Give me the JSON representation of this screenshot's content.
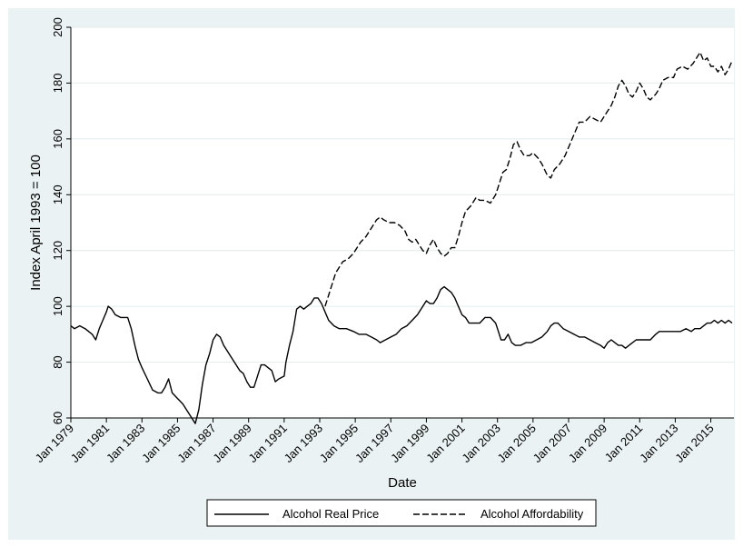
{
  "chart_data": {
    "type": "line",
    "title": "",
    "xlabel": "Date",
    "ylabel": "Index April 1993 = 100",
    "ylim": [
      60,
      200
    ],
    "xlim": [
      1979,
      2016.3
    ],
    "yticks": [
      60,
      80,
      100,
      120,
      140,
      160,
      180,
      200
    ],
    "xticks": [
      {
        "label": "Jan 1979",
        "value": 1979
      },
      {
        "label": "Jan 1981",
        "value": 1981
      },
      {
        "label": "Jan 1983",
        "value": 1983
      },
      {
        "label": "Jan 1985",
        "value": 1985
      },
      {
        "label": "Jan 1987",
        "value": 1987
      },
      {
        "label": "Jan 1989",
        "value": 1989
      },
      {
        "label": "Jan 1991",
        "value": 1991
      },
      {
        "label": "Jan 1993",
        "value": 1993
      },
      {
        "label": "Jan 1995",
        "value": 1995
      },
      {
        "label": "Jan 1997",
        "value": 1997
      },
      {
        "label": "Jan 1999",
        "value": 1999
      },
      {
        "label": "Jan 2001",
        "value": 2001
      },
      {
        "label": "Jan 2003",
        "value": 2003
      },
      {
        "label": "Jan 2005",
        "value": 2005
      },
      {
        "label": "Jan 2007",
        "value": 2007
      },
      {
        "label": "Jan 2009",
        "value": 2009
      },
      {
        "label": "Jan 2011",
        "value": 2011
      },
      {
        "label": "Jan 2013",
        "value": 2013
      },
      {
        "label": "Jan 2015",
        "value": 2015
      }
    ],
    "grid": true,
    "legend_position": "bottom",
    "series": [
      {
        "name": "Alcohol Real Price",
        "style": "solid",
        "color": "#000000",
        "points": [
          [
            1979.0,
            93
          ],
          [
            1979.2,
            92
          ],
          [
            1979.5,
            93
          ],
          [
            1979.8,
            92
          ],
          [
            1980.0,
            91
          ],
          [
            1980.2,
            90
          ],
          [
            1980.4,
            88
          ],
          [
            1980.6,
            92
          ],
          [
            1980.8,
            95
          ],
          [
            1981.0,
            98
          ],
          [
            1981.1,
            100
          ],
          [
            1981.3,
            99
          ],
          [
            1981.5,
            97
          ],
          [
            1981.8,
            96
          ],
          [
            1982.0,
            96
          ],
          [
            1982.2,
            96
          ],
          [
            1982.4,
            92
          ],
          [
            1982.6,
            86
          ],
          [
            1982.8,
            81
          ],
          [
            1983.0,
            78
          ],
          [
            1983.3,
            74
          ],
          [
            1983.6,
            70
          ],
          [
            1983.9,
            69
          ],
          [
            1984.1,
            69
          ],
          [
            1984.3,
            71
          ],
          [
            1984.5,
            74
          ],
          [
            1984.7,
            69
          ],
          [
            1985.0,
            67
          ],
          [
            1985.3,
            65
          ],
          [
            1985.6,
            62
          ],
          [
            1985.8,
            60
          ],
          [
            1986.0,
            58
          ],
          [
            1986.2,
            63
          ],
          [
            1986.4,
            72
          ],
          [
            1986.6,
            79
          ],
          [
            1986.8,
            83
          ],
          [
            1987.0,
            88
          ],
          [
            1987.2,
            90
          ],
          [
            1987.4,
            89
          ],
          [
            1987.6,
            86
          ],
          [
            1987.9,
            83
          ],
          [
            1988.2,
            80
          ],
          [
            1988.5,
            77
          ],
          [
            1988.7,
            76
          ],
          [
            1988.9,
            73
          ],
          [
            1989.1,
            71
          ],
          [
            1989.3,
            71
          ],
          [
            1989.5,
            75
          ],
          [
            1989.7,
            79
          ],
          [
            1989.9,
            79
          ],
          [
            1990.1,
            78
          ],
          [
            1990.3,
            77
          ],
          [
            1990.5,
            73
          ],
          [
            1990.7,
            74
          ],
          [
            1991.0,
            75
          ],
          [
            1991.1,
            80
          ],
          [
            1991.3,
            86
          ],
          [
            1991.5,
            91
          ],
          [
            1991.7,
            99
          ],
          [
            1991.9,
            100
          ],
          [
            1992.1,
            99
          ],
          [
            1992.3,
            100
          ],
          [
            1992.5,
            101
          ],
          [
            1992.7,
            103
          ],
          [
            1992.9,
            103
          ],
          [
            1993.1,
            101
          ],
          [
            1993.3,
            98
          ],
          [
            1993.5,
            95
          ],
          [
            1993.8,
            93
          ],
          [
            1994.1,
            92
          ],
          [
            1994.5,
            92
          ],
          [
            1994.9,
            91
          ],
          [
            1995.2,
            90
          ],
          [
            1995.6,
            90
          ],
          [
            1995.9,
            89
          ],
          [
            1996.2,
            88
          ],
          [
            1996.4,
            87
          ],
          [
            1996.7,
            88
          ],
          [
            1997.0,
            89
          ],
          [
            1997.3,
            90
          ],
          [
            1997.6,
            92
          ],
          [
            1997.9,
            93
          ],
          [
            1998.2,
            95
          ],
          [
            1998.5,
            97
          ],
          [
            1998.8,
            100
          ],
          [
            1999.0,
            102
          ],
          [
            1999.2,
            101
          ],
          [
            1999.4,
            101
          ],
          [
            1999.6,
            103
          ],
          [
            1999.8,
            106
          ],
          [
            2000.0,
            107
          ],
          [
            2000.2,
            106
          ],
          [
            2000.4,
            105
          ],
          [
            2000.6,
            103
          ],
          [
            2000.8,
            100
          ],
          [
            2001.0,
            97
          ],
          [
            2001.2,
            96
          ],
          [
            2001.4,
            94
          ],
          [
            2001.6,
            94
          ],
          [
            2001.8,
            94
          ],
          [
            2002.0,
            94
          ],
          [
            2002.3,
            96
          ],
          [
            2002.6,
            96
          ],
          [
            2002.9,
            94
          ],
          [
            2003.0,
            92
          ],
          [
            2003.2,
            88
          ],
          [
            2003.4,
            88
          ],
          [
            2003.6,
            90
          ],
          [
            2003.8,
            87
          ],
          [
            2004.0,
            86
          ],
          [
            2004.3,
            86
          ],
          [
            2004.6,
            87
          ],
          [
            2004.9,
            87
          ],
          [
            2005.2,
            88
          ],
          [
            2005.5,
            89
          ],
          [
            2005.8,
            91
          ],
          [
            2006.0,
            93
          ],
          [
            2006.2,
            94
          ],
          [
            2006.4,
            94
          ],
          [
            2006.7,
            92
          ],
          [
            2007.0,
            91
          ],
          [
            2007.3,
            90
          ],
          [
            2007.6,
            89
          ],
          [
            2007.9,
            89
          ],
          [
            2008.2,
            88
          ],
          [
            2008.5,
            87
          ],
          [
            2008.8,
            86
          ],
          [
            2009.0,
            85
          ],
          [
            2009.2,
            87
          ],
          [
            2009.4,
            88
          ],
          [
            2009.6,
            87
          ],
          [
            2009.8,
            86
          ],
          [
            2010.0,
            86
          ],
          [
            2010.2,
            85
          ],
          [
            2010.4,
            86
          ],
          [
            2010.6,
            87
          ],
          [
            2010.8,
            88
          ],
          [
            2011.0,
            88
          ],
          [
            2011.3,
            88
          ],
          [
            2011.6,
            88
          ],
          [
            2011.9,
            90
          ],
          [
            2012.1,
            91
          ],
          [
            2012.4,
            91
          ],
          [
            2012.7,
            91
          ],
          [
            2013.0,
            91
          ],
          [
            2013.3,
            91
          ],
          [
            2013.6,
            92
          ],
          [
            2013.9,
            91
          ],
          [
            2014.1,
            92
          ],
          [
            2014.4,
            92
          ],
          [
            2014.6,
            93
          ],
          [
            2014.8,
            94
          ],
          [
            2015.0,
            94
          ],
          [
            2015.2,
            95
          ],
          [
            2015.4,
            94
          ],
          [
            2015.6,
            95
          ],
          [
            2015.8,
            94
          ],
          [
            2016.0,
            95
          ],
          [
            2016.2,
            94
          ]
        ]
      },
      {
        "name": "Alcohol Affordability",
        "style": "dashed",
        "color": "#000000",
        "points": [
          [
            1993.3,
            100
          ],
          [
            1993.5,
            104
          ],
          [
            1993.7,
            108
          ],
          [
            1993.9,
            112
          ],
          [
            1994.1,
            114
          ],
          [
            1994.3,
            116
          ],
          [
            1994.6,
            117
          ],
          [
            1994.9,
            119
          ],
          [
            1995.1,
            121
          ],
          [
            1995.3,
            123
          ],
          [
            1995.6,
            125
          ],
          [
            1995.8,
            127
          ],
          [
            1996.0,
            129
          ],
          [
            1996.2,
            131
          ],
          [
            1996.4,
            132
          ],
          [
            1996.6,
            131
          ],
          [
            1996.9,
            130
          ],
          [
            1997.2,
            130
          ],
          [
            1997.5,
            129
          ],
          [
            1997.8,
            127
          ],
          [
            1998.0,
            124
          ],
          [
            1998.2,
            123
          ],
          [
            1998.4,
            124
          ],
          [
            1998.6,
            122
          ],
          [
            1998.8,
            120
          ],
          [
            1999.0,
            119
          ],
          [
            1999.2,
            122
          ],
          [
            1999.4,
            124
          ],
          [
            1999.6,
            121
          ],
          [
            1999.8,
            119
          ],
          [
            2000.0,
            118
          ],
          [
            2000.2,
            119
          ],
          [
            2000.4,
            121
          ],
          [
            2000.6,
            121
          ],
          [
            2000.8,
            125
          ],
          [
            2001.0,
            130
          ],
          [
            2001.2,
            134
          ],
          [
            2001.5,
            136
          ],
          [
            2001.8,
            139
          ],
          [
            2002.0,
            138
          ],
          [
            2002.3,
            138
          ],
          [
            2002.6,
            137
          ],
          [
            2002.9,
            140
          ],
          [
            2003.1,
            144
          ],
          [
            2003.3,
            148
          ],
          [
            2003.5,
            149
          ],
          [
            2003.7,
            153
          ],
          [
            2003.9,
            158
          ],
          [
            2004.1,
            159
          ],
          [
            2004.3,
            156
          ],
          [
            2004.5,
            154
          ],
          [
            2004.8,
            154
          ],
          [
            2005.0,
            155
          ],
          [
            2005.3,
            153
          ],
          [
            2005.5,
            151
          ],
          [
            2005.8,
            147
          ],
          [
            2006.0,
            146
          ],
          [
            2006.2,
            149
          ],
          [
            2006.5,
            151
          ],
          [
            2006.8,
            154
          ],
          [
            2007.0,
            157
          ],
          [
            2007.2,
            160
          ],
          [
            2007.4,
            163
          ],
          [
            2007.6,
            166
          ],
          [
            2007.9,
            166
          ],
          [
            2008.2,
            168
          ],
          [
            2008.5,
            167
          ],
          [
            2008.8,
            166
          ],
          [
            2009.0,
            168
          ],
          [
            2009.2,
            170
          ],
          [
            2009.4,
            172
          ],
          [
            2009.6,
            175
          ],
          [
            2009.8,
            179
          ],
          [
            2010.0,
            181
          ],
          [
            2010.2,
            179
          ],
          [
            2010.4,
            176
          ],
          [
            2010.6,
            175
          ],
          [
            2010.8,
            177
          ],
          [
            2011.0,
            180
          ],
          [
            2011.2,
            178
          ],
          [
            2011.4,
            175
          ],
          [
            2011.6,
            174
          ],
          [
            2011.9,
            176
          ],
          [
            2012.1,
            178
          ],
          [
            2012.3,
            181
          ],
          [
            2012.6,
            182
          ],
          [
            2012.9,
            182
          ],
          [
            2013.1,
            185
          ],
          [
            2013.4,
            186
          ],
          [
            2013.7,
            185
          ],
          [
            2014.0,
            187
          ],
          [
            2014.2,
            189
          ],
          [
            2014.4,
            191
          ],
          [
            2014.6,
            188
          ],
          [
            2014.8,
            189
          ],
          [
            2015.0,
            186
          ],
          [
            2015.2,
            186
          ],
          [
            2015.4,
            184
          ],
          [
            2015.6,
            186
          ],
          [
            2015.8,
            183
          ],
          [
            2016.0,
            185
          ],
          [
            2016.2,
            188
          ]
        ]
      }
    ]
  }
}
